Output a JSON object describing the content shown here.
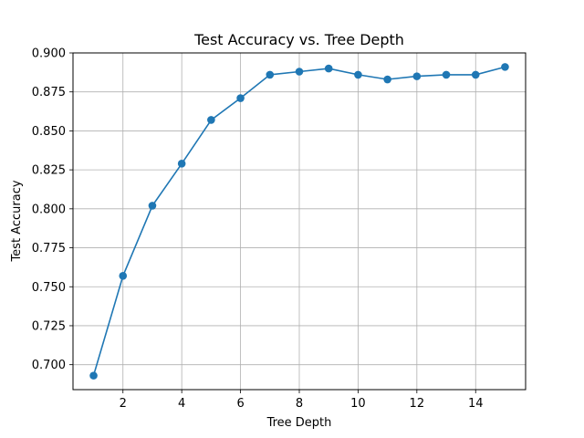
{
  "chart_data": {
    "type": "line",
    "title": "Test Accuracy vs. Tree Depth",
    "xlabel": "Tree Depth",
    "ylabel": "Test Accuracy",
    "xlim": [
      0.3,
      15.7
    ],
    "ylim": [
      0.684,
      0.9
    ],
    "xticks": [
      2,
      4,
      6,
      8,
      10,
      12,
      14
    ],
    "yticks": [
      0.7,
      0.725,
      0.75,
      0.775,
      0.8,
      0.825,
      0.85,
      0.875,
      0.9
    ],
    "ytick_labels": [
      "0.700",
      "0.725",
      "0.750",
      "0.775",
      "0.800",
      "0.825",
      "0.850",
      "0.875",
      "0.900"
    ],
    "grid": true,
    "markers": true,
    "series": [
      {
        "color": "#1f77b4",
        "x": [
          1,
          2,
          3,
          4,
          5,
          6,
          7,
          8,
          9,
          10,
          11,
          12,
          13,
          14,
          15
        ],
        "y": [
          0.693,
          0.757,
          0.802,
          0.829,
          0.857,
          0.871,
          0.886,
          0.888,
          0.89,
          0.886,
          0.883,
          0.885,
          0.886,
          0.886,
          0.891
        ]
      }
    ]
  }
}
